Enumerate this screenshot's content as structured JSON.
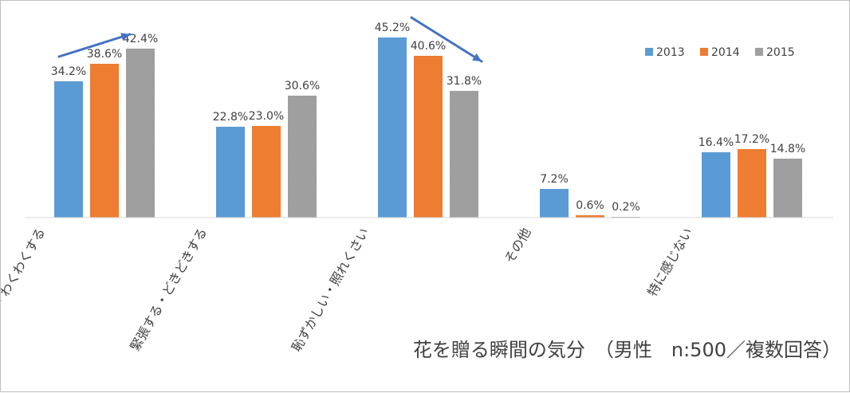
{
  "chart_data": {
    "type": "bar",
    "title": "花を贈る瞬間の気分　（男性　n:500／複数回答）",
    "categories": [
      "楽しい・わくわくする",
      "緊張する・どきどきする",
      "恥ずかしい・照れくさい",
      "その他",
      "特に感じない"
    ],
    "series": [
      {
        "name": "2013",
        "color": "#5b9bd5",
        "values": [
          34.2,
          22.8,
          45.2,
          7.2,
          16.4
        ],
        "labels": [
          "34.2%",
          "22.8%",
          "45.2%",
          "7.2%",
          "16.4%"
        ]
      },
      {
        "name": "2014",
        "color": "#ed7d31",
        "values": [
          38.6,
          23.0,
          40.6,
          0.6,
          17.2
        ],
        "labels": [
          "38.6%",
          "23.0%",
          "40.6%",
          "0.6%",
          "17.2%"
        ]
      },
      {
        "name": "2015",
        "color": "#a5a5a5",
        "values": [
          42.4,
          30.6,
          31.8,
          0.2,
          14.8
        ],
        "labels": [
          "42.4%",
          "30.6%",
          "31.8%",
          "0.2%",
          "14.8%"
        ]
      }
    ],
    "ylim": [
      0,
      50
    ],
    "grid": false,
    "legend_position": "top-right",
    "annotations": [
      {
        "type": "arrow",
        "direction": "up-right",
        "near_category": "楽しい・わくわくする"
      },
      {
        "type": "arrow",
        "direction": "down-right",
        "near_category": "恥ずかしい・照れくさい"
      }
    ],
    "arrow_color": "#4472c4"
  }
}
